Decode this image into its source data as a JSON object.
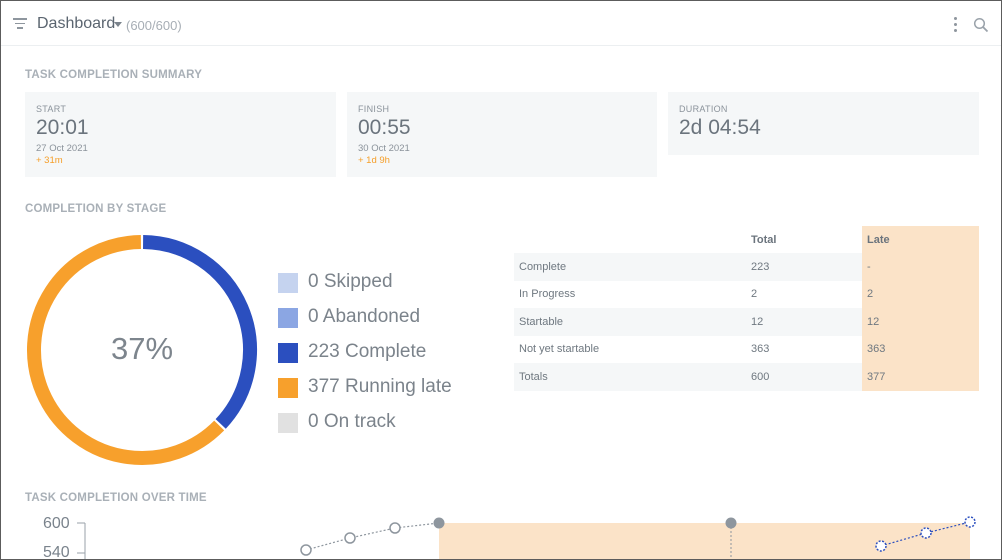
{
  "header": {
    "title": "Dashboard",
    "count": "(600/600)"
  },
  "summary": {
    "section_title": "TASK COMPLETION SUMMARY",
    "start": {
      "label": "START",
      "time": "20:01",
      "date": "27 Oct 2021",
      "delta": "+ 31m"
    },
    "finish": {
      "label": "FINISH",
      "time": "00:55",
      "date": "30 Oct 2021",
      "delta": "+ 1d 9h"
    },
    "duration": {
      "label": "DURATION",
      "value": "2d 04:54"
    }
  },
  "stage": {
    "section_title": "COMPLETION BY STAGE",
    "percent_label": "37%",
    "legend": [
      {
        "label": "0 Skipped",
        "count": 0,
        "color": "#c5d3ef"
      },
      {
        "label": "0 Abandoned",
        "count": 0,
        "color": "#8ba6e3"
      },
      {
        "label": "223 Complete",
        "count": 223,
        "color": "#2b4fbf"
      },
      {
        "label": "377 Running late",
        "count": 377,
        "color": "#f7a02c"
      },
      {
        "label": "0 On track",
        "count": 0,
        "color": "#e1e1e1"
      }
    ],
    "table": {
      "headers": [
        "",
        "Total",
        "Late"
      ],
      "rows": [
        [
          "Complete",
          "223",
          "-"
        ],
        [
          "In Progress",
          "2",
          "2"
        ],
        [
          "Startable",
          "12",
          "12"
        ],
        [
          "Not yet startable",
          "363",
          "363"
        ],
        [
          "Totals",
          "600",
          "377"
        ]
      ]
    }
  },
  "over_time": {
    "section_title": "TASK COMPLETION OVER TIME",
    "y_ticks": [
      "600",
      "540"
    ]
  },
  "colors": {
    "late_fill": "#fbe3c8",
    "complete": "#2b4fbf",
    "running_late": "#f7a02c"
  }
}
